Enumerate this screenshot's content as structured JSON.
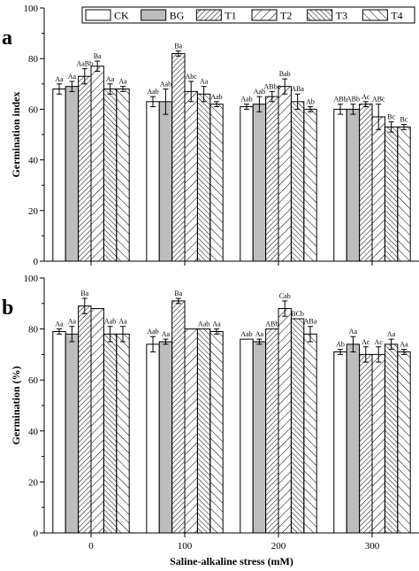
{
  "figure": {
    "legend": [
      {
        "name": "CK",
        "pattern": "none"
      },
      {
        "name": "BG",
        "pattern": "solid"
      },
      {
        "name": "T1",
        "pattern": "hatch-45"
      },
      {
        "name": "T2",
        "pattern": "hatch-45-sparse"
      },
      {
        "name": "T3",
        "pattern": "hatch-135"
      },
      {
        "name": "T4",
        "pattern": "hatch-135-sparse"
      }
    ],
    "colors": {
      "bar_fill": "#ffffff",
      "solid_fill": "#bdbdbd",
      "stroke": "#000000"
    },
    "xlabel": "Saline-alkaline stress (mM)",
    "legend_position": "top"
  },
  "chart_data": [
    {
      "type": "bar",
      "panel_label": "a",
      "ylabel": "Germination index",
      "ylim": [
        0,
        100
      ],
      "yticks": [
        0,
        20,
        40,
        60,
        80,
        100
      ],
      "categories": [
        "0",
        "100",
        "200",
        "300"
      ],
      "series": [
        {
          "name": "CK",
          "values": [
            68,
            63,
            61,
            60
          ],
          "errors": [
            2,
            2,
            1,
            2
          ],
          "labels": [
            "Aa",
            "Aab",
            "Aab",
            "ABb"
          ]
        },
        {
          "name": "BG",
          "values": [
            69,
            63,
            62,
            60
          ],
          "errors": [
            2,
            5,
            3,
            2
          ],
          "labels": [
            "Aa",
            "Aab",
            "Aab",
            "ABb"
          ]
        },
        {
          "name": "T1",
          "values": [
            73,
            82,
            65,
            62
          ],
          "errors": [
            3,
            1,
            2,
            1
          ],
          "labels": [
            "AaBb",
            "Ba",
            "ABbc",
            "Ac"
          ]
        },
        {
          "name": "T2",
          "values": [
            77,
            67,
            69,
            57
          ],
          "errors": [
            2,
            4,
            3,
            5
          ],
          "labels": [
            "Ba",
            "Abc",
            "Bab",
            "ABc"
          ]
        },
        {
          "name": "T3",
          "values": [
            68,
            66,
            63,
            53
          ],
          "errors": [
            2,
            3,
            3,
            2
          ],
          "labels": [
            "Aa",
            "Aa",
            "ABa",
            "Bc"
          ]
        },
        {
          "name": "T4",
          "values": [
            68,
            62,
            60,
            53
          ],
          "errors": [
            1,
            1,
            1,
            1
          ],
          "labels": [
            "Aa",
            "Aab",
            "Ab",
            "Bc"
          ]
        }
      ]
    },
    {
      "type": "bar",
      "panel_label": "b",
      "ylabel": "Germination (%)",
      "ylim": [
        0,
        100
      ],
      "yticks": [
        0,
        20,
        40,
        60,
        80,
        100
      ],
      "categories": [
        "0",
        "100",
        "200",
        "300"
      ],
      "xticks": [
        "0",
        "100",
        "200",
        "300"
      ],
      "series": [
        {
          "name": "CK",
          "values": [
            79,
            74,
            76,
            71
          ],
          "errors": [
            1,
            3,
            0,
            1
          ],
          "labels": [
            "Aa",
            "Aab",
            "Aab",
            "Ab"
          ]
        },
        {
          "name": "BG",
          "values": [
            78,
            75,
            75,
            74
          ],
          "errors": [
            3,
            1,
            1,
            3
          ],
          "labels": [
            "Aa",
            "Aa",
            "Aa",
            "Aa"
          ]
        },
        {
          "name": "T1",
          "values": [
            89,
            91,
            80,
            70
          ],
          "errors": [
            3,
            1,
            0,
            3
          ],
          "labels": [
            "Ba",
            "Ba",
            "ABb",
            "Ac"
          ]
        },
        {
          "name": "T2",
          "values": [
            88,
            80,
            88,
            70
          ],
          "errors": [
            0,
            0,
            3,
            3
          ],
          "labels": [
            "",
            "",
            "Cab",
            "Ac"
          ]
        },
        {
          "name": "T3",
          "values": [
            78,
            80,
            84,
            74
          ],
          "errors": [
            3,
            0,
            0,
            2
          ],
          "labels": [
            "Aab",
            "Aab",
            "BCb",
            "Aa"
          ]
        },
        {
          "name": "T4",
          "values": [
            78,
            79,
            78,
            71
          ],
          "errors": [
            3,
            1,
            3,
            1
          ],
          "labels": [
            "Aa",
            "Aa",
            "ABa",
            "Aa"
          ]
        }
      ]
    }
  ]
}
